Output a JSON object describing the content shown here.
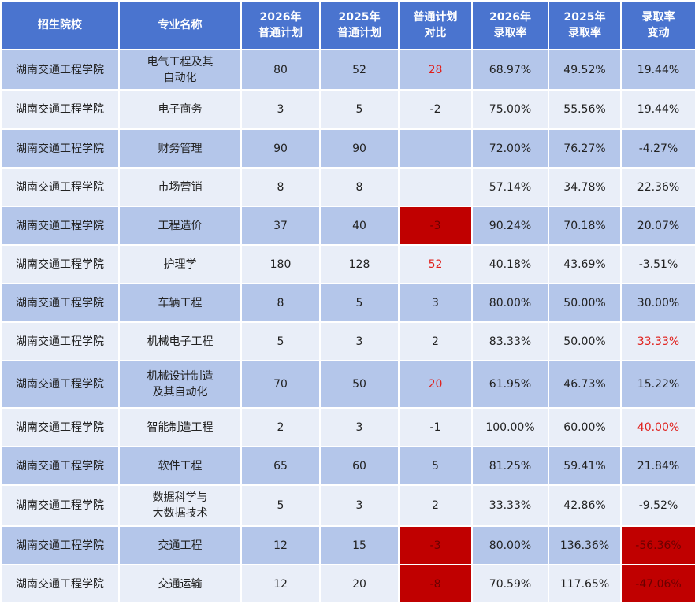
{
  "table": {
    "header": [
      "招生院校",
      "专业名称",
      "2026年\n普通计划",
      "2025年\n普通计划",
      "普通计划\n对比",
      "2026年\n录取率",
      "2025年\n录取率",
      "录取率\n变动"
    ],
    "rows": [
      [
        "湖南交通工程学院",
        "电气工程及其\n自动化",
        "80",
        "52",
        "28",
        "68.97%",
        "49.52%",
        "19.44%"
      ],
      [
        "湖南交通工程学院",
        "电子商务",
        "3",
        "5",
        "-2",
        "75.00%",
        "55.56%",
        "19.44%"
      ],
      [
        "湖南交通工程学院",
        "财务管理",
        "90",
        "90",
        null,
        "72.00%",
        "76.27%",
        "-4.27%"
      ],
      [
        "湖南交通工程学院",
        "市场营销",
        "8",
        "8",
        null,
        "57.14%",
        "34.78%",
        "22.36%"
      ],
      [
        "湖南交通工程学院",
        "工程造价",
        "37",
        "40",
        "-3",
        "90.24%",
        "70.18%",
        "20.07%"
      ],
      [
        "湖南交通工程学院",
        "护理学",
        "180",
        "128",
        "52",
        "40.18%",
        "43.69%",
        "-3.51%"
      ],
      [
        "湖南交通工程学院",
        "车辆工程",
        "8",
        "5",
        "3",
        "80.00%",
        "50.00%",
        "30.00%"
      ],
      [
        "湖南交通工程学院",
        "机械电子工程",
        "5",
        "3",
        "2",
        "83.33%",
        "50.00%",
        "33.33%"
      ],
      [
        "湖南交通工程学院",
        "机械设计制造\n及其自动化",
        "70",
        "50",
        "20",
        "61.95%",
        "46.73%",
        "15.22%"
      ],
      [
        "湖南交通工程学院",
        "智能制造工程",
        "2",
        "3",
        "-1",
        "100.00%",
        "60.00%",
        "40.00%"
      ],
      [
        "湖南交通工程学院",
        "软件工程",
        "65",
        "60",
        "5",
        "81.25%",
        "59.41%",
        "21.84%"
      ],
      [
        "湖南交通工程学院",
        "数据科学与\n大数据技术",
        "5",
        "3",
        "2",
        "33.33%",
        "42.86%",
        "-9.52%"
      ],
      [
        "湖南交通工程学院",
        "交通工程",
        "12",
        "15",
        "-3",
        "80.00%",
        "136.36%",
        "-56.36%"
      ],
      [
        "湖南交通工程学院",
        "交通运输",
        "12",
        "20",
        "-8",
        "70.59%",
        "117.65%",
        "-47.06%"
      ]
    ]
  }
}
